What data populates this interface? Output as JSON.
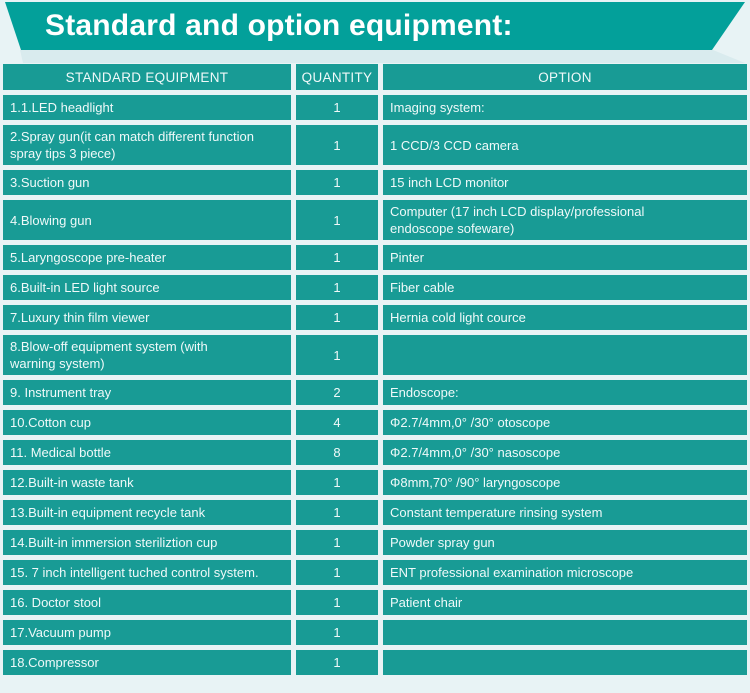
{
  "title": "Standard and option equipment:",
  "colors": {
    "banner_teal": "#03A09A",
    "cell_teal": "#189B95",
    "page_bg": "#E8F3F5",
    "shadow_strip": "#D9EBEE",
    "cell_text": "#EFF9F9"
  },
  "table": {
    "headers": [
      "STANDARD EQUIPMENT",
      "QUANTITY",
      "OPTION"
    ],
    "rows": [
      {
        "standard": "1.1.LED headlight",
        "quantity": "1",
        "option": "Imaging system:"
      },
      {
        "standard": "2.Spray gun(it can match different function\nspray tips 3 piece)",
        "quantity": "1",
        "option": "1 CCD/3 CCD camera"
      },
      {
        "standard": "3.Suction gun",
        "quantity": "1",
        "option": "15 inch LCD monitor"
      },
      {
        "standard": "4.Blowing gun",
        "quantity": "1",
        "option": "Computer (17 inch LCD display/professional\nendoscope sofeware)"
      },
      {
        "standard": "5.Laryngoscope pre-heater",
        "quantity": "1",
        "option": "Pinter"
      },
      {
        "standard": "6.Built-in LED light source",
        "quantity": "1",
        "option": "Fiber cable"
      },
      {
        "standard": "7.Luxury thin film viewer",
        "quantity": "1",
        "option": "Hernia cold light cource"
      },
      {
        "standard": "8.Blow-off equipment system (with\nwarning system)",
        "quantity": "1",
        "option": ""
      },
      {
        "standard": "9. Instrument tray",
        "quantity": "2",
        "option": "Endoscope:"
      },
      {
        "standard": "10.Cotton cup",
        "quantity": "4",
        "option": "Φ2.7/4mm,0° /30° otoscope"
      },
      {
        "standard": "11. Medical bottle",
        "quantity": "8",
        "option": "Φ2.7/4mm,0° /30° nasoscope"
      },
      {
        "standard": "12.Built-in waste tank",
        "quantity": "1",
        "option": "Φ8mm,70° /90° laryngoscope"
      },
      {
        "standard": "13.Built-in equipment recycle tank",
        "quantity": "1",
        "option": "Constant temperature rinsing system"
      },
      {
        "standard": "14.Built-in immersion steriliztion cup",
        "quantity": "1",
        "option": "Powder spray gun"
      },
      {
        "standard": "15. 7 inch intelligent tuched control system.",
        "quantity": "1",
        "option": "ENT professional examination microscope"
      },
      {
        "standard": "16. Doctor stool",
        "quantity": "1",
        "option": "Patient chair"
      },
      {
        "standard": "17.Vacuum pump",
        "quantity": "1",
        "option": ""
      },
      {
        "standard": "18.Compressor",
        "quantity": "1",
        "option": ""
      }
    ]
  }
}
